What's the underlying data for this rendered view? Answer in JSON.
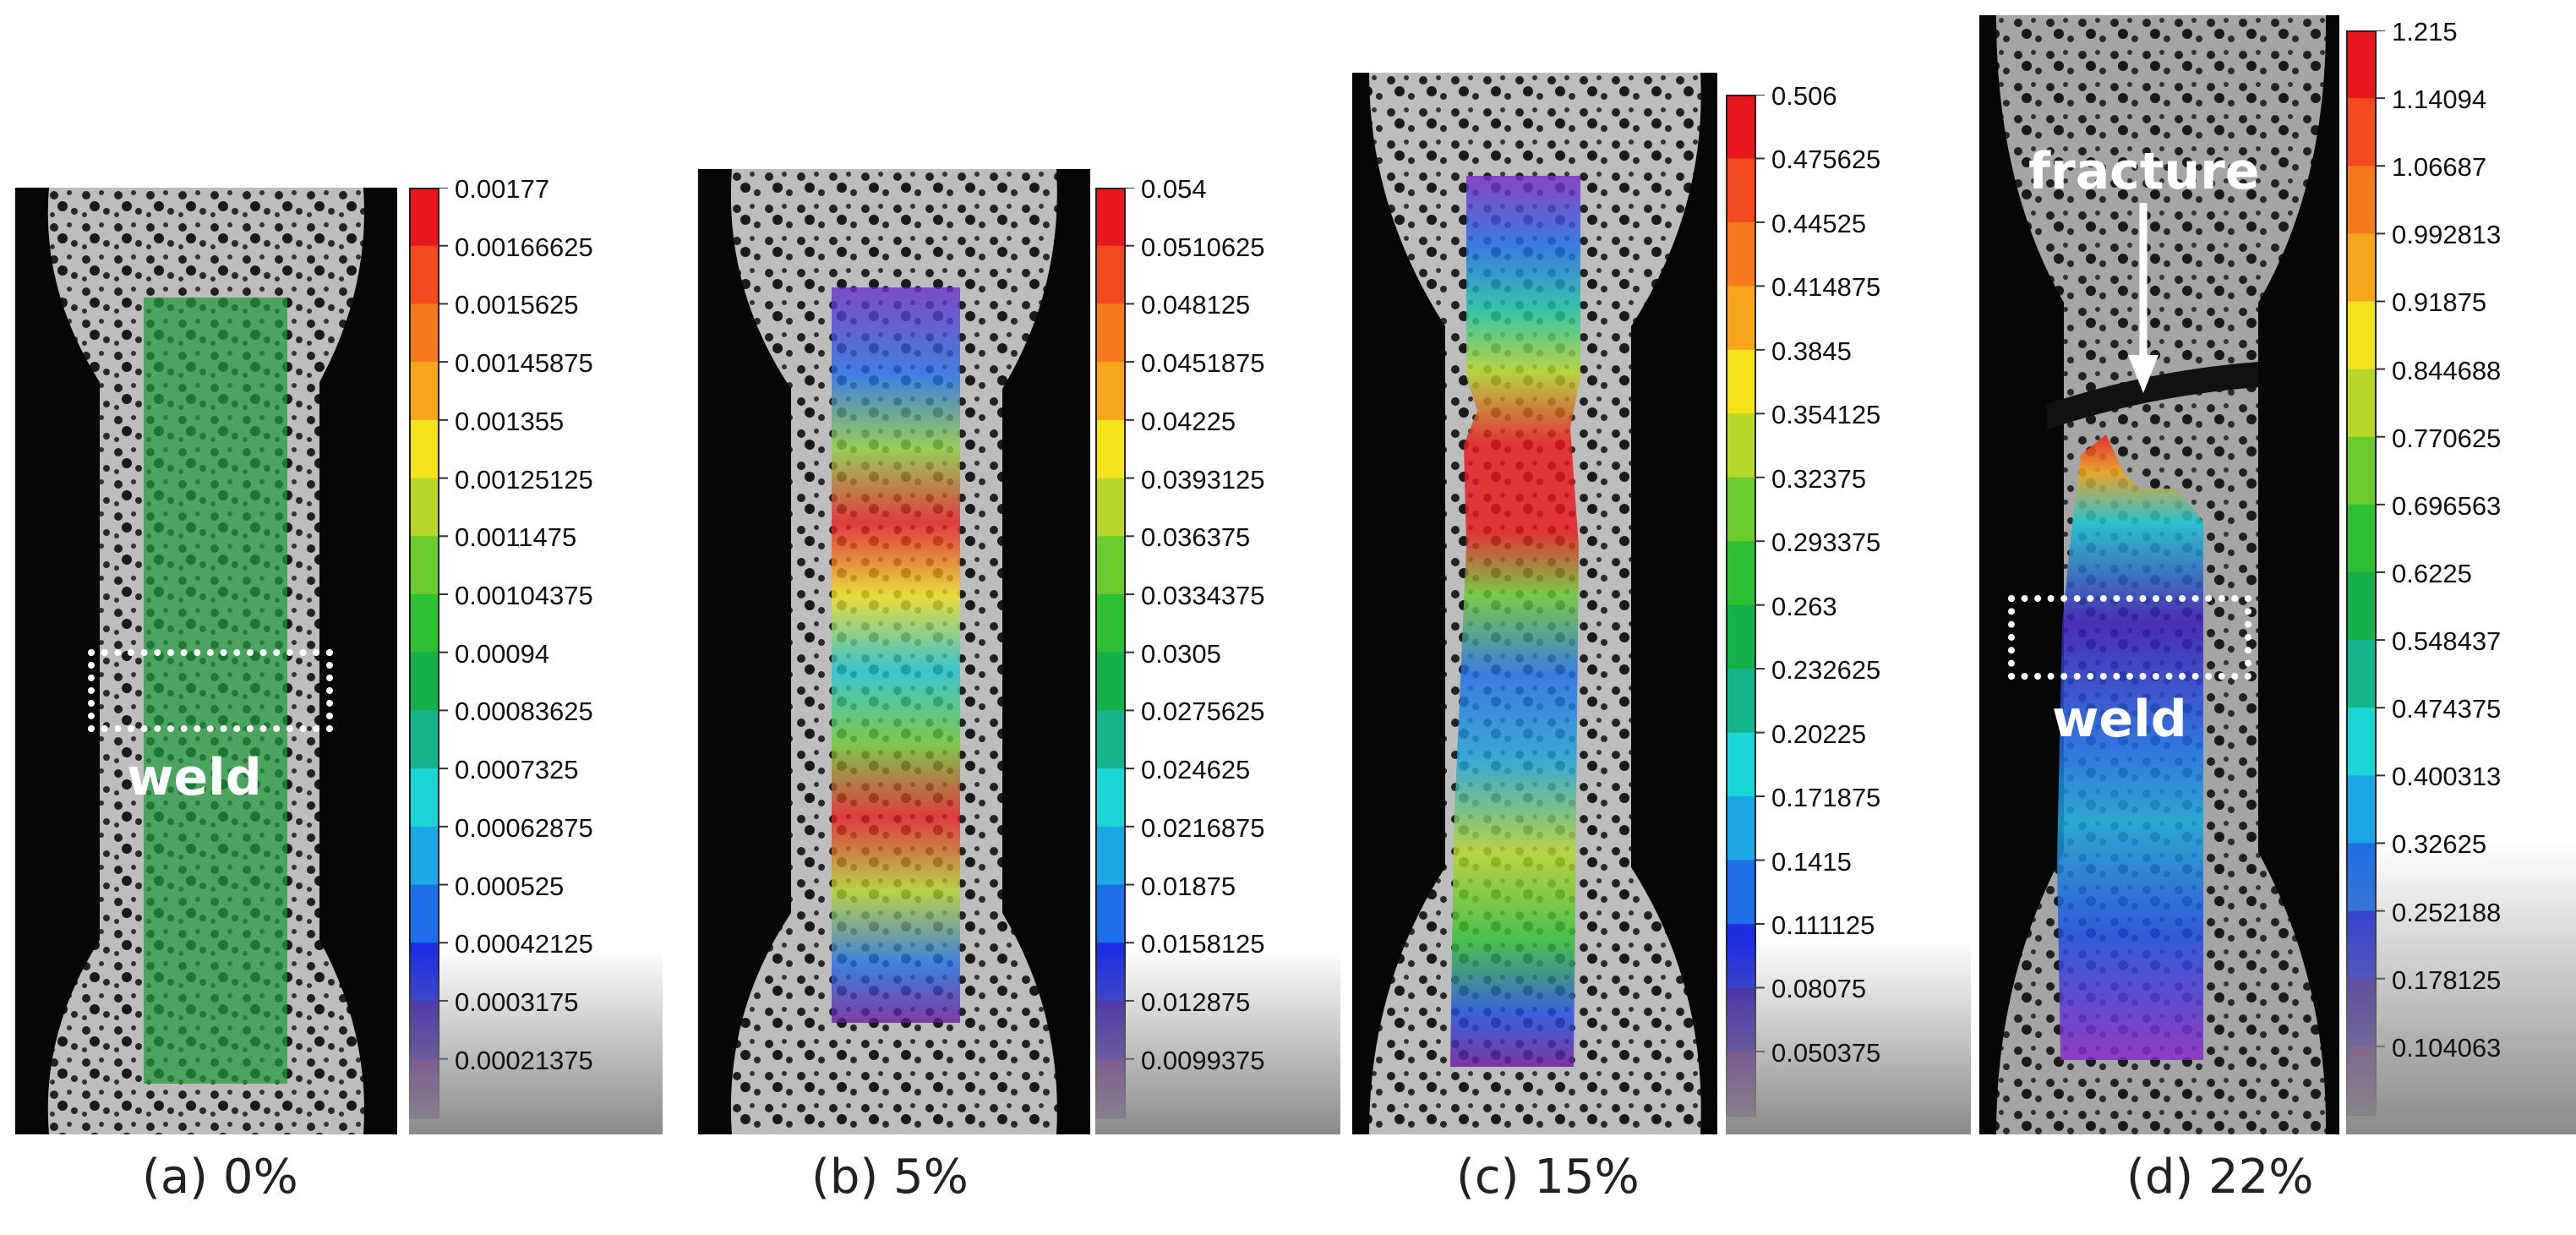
{
  "panels": [
    {
      "id": "a",
      "caption": "(a) 0%",
      "scale": [
        "0.00177",
        "0.00166625",
        "0.0015625",
        "0.00145875",
        "0.001355",
        "0.00125125",
        "0.0011475",
        "0.00104375",
        "0.00094",
        "0.00083625",
        "0.0007325",
        "0.00062875",
        "0.000525",
        "0.00042125",
        "0.0003175",
        "0.00021375"
      ],
      "annotation": "weld"
    },
    {
      "id": "b",
      "caption": "(b) 5%",
      "scale": [
        "0.054",
        "0.0510625",
        "0.048125",
        "0.0451875",
        "0.04225",
        "0.0393125",
        "0.036375",
        "0.0334375",
        "0.0305",
        "0.0275625",
        "0.024625",
        "0.0216875",
        "0.01875",
        "0.0158125",
        "0.012875",
        "0.0099375"
      ]
    },
    {
      "id": "c",
      "caption": "(c) 15%",
      "scale": [
        "0.506",
        "0.475625",
        "0.44525",
        "0.414875",
        "0.3845",
        "0.354125",
        "0.32375",
        "0.293375",
        "0.263",
        "0.232625",
        "0.20225",
        "0.171875",
        "0.1415",
        "0.111125",
        "0.08075",
        "0.050375"
      ]
    },
    {
      "id": "d",
      "caption": "(d) 22%",
      "scale": [
        "1.215",
        "1.14094",
        "1.06687",
        "0.992813",
        "0.91875",
        "0.844688",
        "0.770625",
        "0.696563",
        "0.6225",
        "0.548437",
        "0.474375",
        "0.400313",
        "0.32625",
        "0.252188",
        "0.178125",
        "0.104063"
      ],
      "annotation": "weld",
      "fracture_label": "fracture"
    }
  ],
  "colormap": [
    "#e8171d",
    "#f04a1e",
    "#f57a1e",
    "#f7a51c",
    "#f5e31b",
    "#b7d82a",
    "#6ccb2e",
    "#2fbf35",
    "#15b04a",
    "#15b58b",
    "#19d5d3",
    "#1ba7e6",
    "#1d6ee8",
    "#1d2de2",
    "#3a1ab5",
    "#6a1999"
  ]
}
